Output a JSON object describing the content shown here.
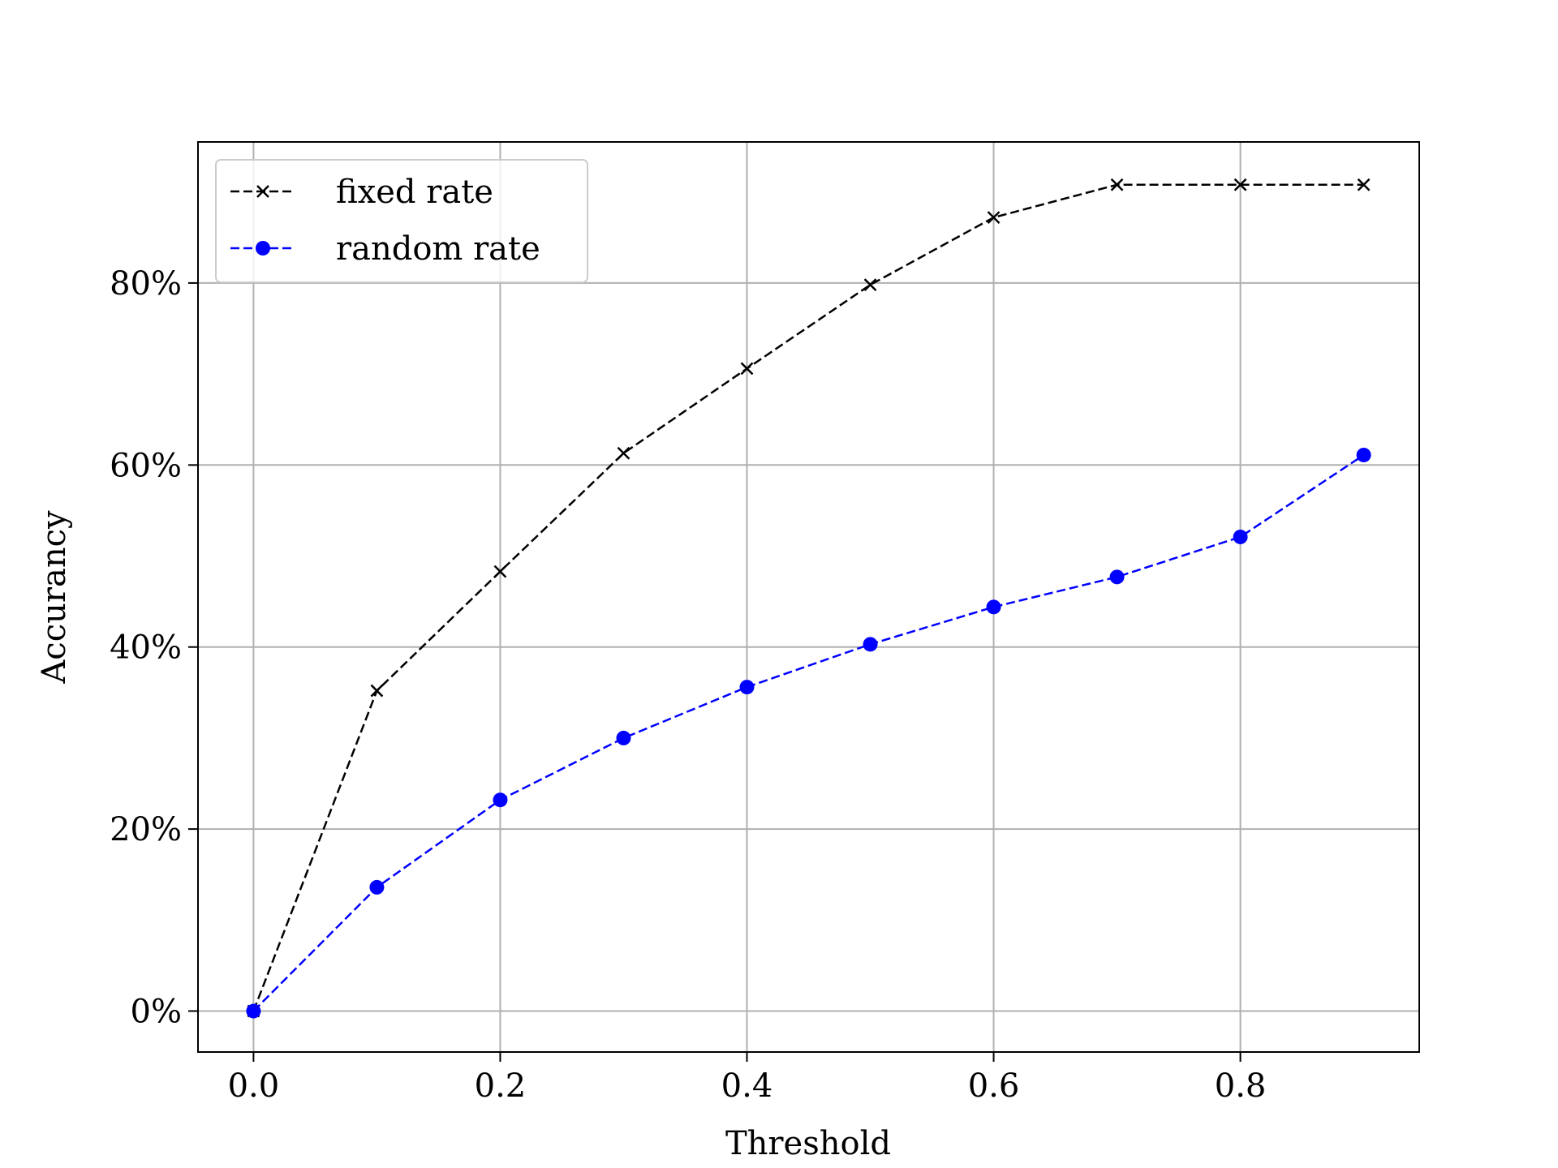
{
  "chart_data": {
    "type": "line",
    "xlabel": "Threshold",
    "ylabel": "Accurancy",
    "x": [
      0.0,
      0.1,
      0.2,
      0.3,
      0.4,
      0.5,
      0.6,
      0.7,
      0.8,
      0.9
    ],
    "xlim": [
      -0.045,
      0.945
    ],
    "ylim": [
      -0.045,
      0.955
    ],
    "x_ticks": [
      0.0,
      0.2,
      0.4,
      0.6,
      0.8
    ],
    "x_tick_labels": [
      "0.0",
      "0.2",
      "0.4",
      "0.6",
      "0.8"
    ],
    "y_ticks": [
      0.0,
      0.2,
      0.4,
      0.6,
      0.8
    ],
    "y_tick_labels": [
      "0%",
      "20%",
      "40%",
      "60%",
      "80%"
    ],
    "grid": true,
    "legend_position": "upper left",
    "series": [
      {
        "name": "fixed rate",
        "color": "#000000",
        "marker": "x",
        "line_style": "dashed",
        "values": [
          0.0,
          0.352,
          0.483,
          0.613,
          0.706,
          0.798,
          0.872,
          0.908,
          0.908,
          0.908
        ]
      },
      {
        "name": "random rate",
        "color": "#0000ff",
        "marker": "circle",
        "line_style": "dashed",
        "values": [
          0.0,
          0.136,
          0.232,
          0.3,
          0.356,
          0.403,
          0.444,
          0.477,
          0.521,
          0.611
        ]
      }
    ]
  }
}
